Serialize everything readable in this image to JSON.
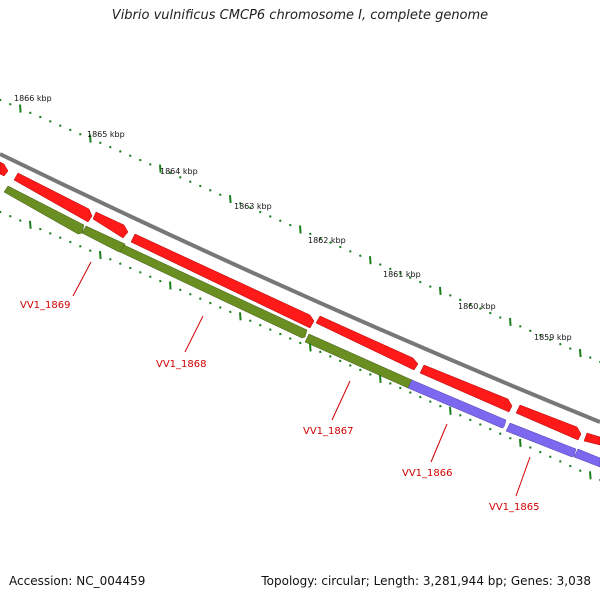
{
  "title": "Vibrio vulnificus CMCP6 chromosome I, complete genome",
  "footer": {
    "accession": "Accession: NC_004459",
    "topology": "Topology: circular; Length: 3,281,944 bp; Genes: 3,038"
  },
  "colors": {
    "background": "#ffffff",
    "backbone": "#777777",
    "strand_red": "#ff1a1a",
    "strand_green": "#6b8e23",
    "strand_purple": "#7b68ee",
    "tick": "#1a7f1a",
    "gene_label": "#d10000"
  },
  "scale": {
    "unit": "kbp",
    "labels": [
      "1866 kbp",
      "1865 kbp",
      "1864 kbp",
      "1863 kbp",
      "1862 kbp",
      "1861 kbp",
      "1860 kbp",
      "1859 kbp"
    ]
  },
  "genes": [
    {
      "label": "VV1_1869",
      "strand": "green"
    },
    {
      "label": "VV1_1868",
      "strand": "green"
    },
    {
      "label": "VV1_1867",
      "strand": "green"
    },
    {
      "label": "VV1_1866",
      "strand": "purple"
    },
    {
      "label": "VV1_1865",
      "strand": "purple"
    }
  ],
  "chart_data": {
    "type": "genome_map",
    "title": "Vibrio vulnificus CMCP6 chromosome I, complete genome",
    "axis_labels": [
      "1866 kbp",
      "1865 kbp",
      "1864 kbp",
      "1863 kbp",
      "1862 kbp",
      "1861 kbp",
      "1860 kbp",
      "1859 kbp"
    ],
    "gene_labels": [
      "VV1_1869",
      "VV1_1868",
      "VV1_1867",
      "VV1_1866",
      "VV1_1865"
    ]
  }
}
